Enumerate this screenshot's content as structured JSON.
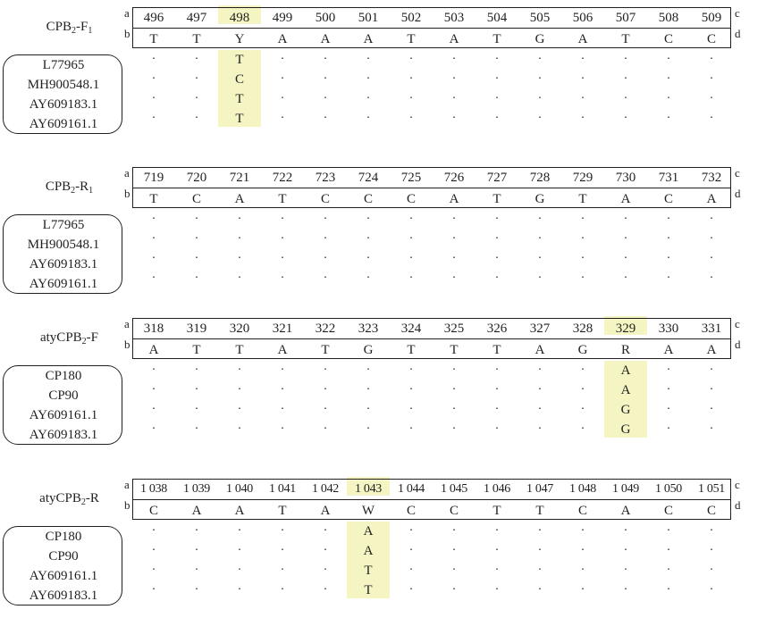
{
  "corners": {
    "a": "a",
    "b": "b",
    "c": "c",
    "d": "d"
  },
  "panels": [
    {
      "label": "CPB",
      "label_sub": "2",
      "label_suffix": "-F",
      "label_suffix_sub": "1",
      "positions": [
        "496",
        "497",
        "498",
        "499",
        "500",
        "501",
        "502",
        "503",
        "504",
        "505",
        "506",
        "507",
        "508",
        "509"
      ],
      "bases": [
        "T",
        "T",
        "Y",
        "A",
        "A",
        "A",
        "T",
        "A",
        "T",
        "G",
        "A",
        "T",
        "C",
        "C"
      ],
      "highlight_index": 2,
      "accessions": [
        "L77965",
        "MH900548.1",
        "AY609183.1",
        "AY609161.1"
      ],
      "variants": [
        "T",
        "C",
        "T",
        "T"
      ],
      "dot": "·"
    },
    {
      "label": "CPB",
      "label_sub": "2",
      "label_suffix": "-R",
      "label_suffix_sub": "1",
      "positions": [
        "719",
        "720",
        "721",
        "722",
        "723",
        "724",
        "725",
        "726",
        "727",
        "728",
        "729",
        "730",
        "731",
        "732"
      ],
      "bases": [
        "T",
        "C",
        "A",
        "T",
        "C",
        "C",
        "C",
        "A",
        "T",
        "G",
        "T",
        "A",
        "C",
        "A"
      ],
      "highlight_index": null,
      "accessions": [
        "L77965",
        "MH900548.1",
        "AY609183.1",
        "AY609161.1"
      ],
      "variants": [],
      "dot": "·"
    },
    {
      "label": "atyCPB",
      "label_sub": "2",
      "label_suffix": "-F",
      "label_suffix_sub": "",
      "positions": [
        "318",
        "319",
        "320",
        "321",
        "322",
        "323",
        "324",
        "325",
        "326",
        "327",
        "328",
        "329",
        "330",
        "331"
      ],
      "bases": [
        "A",
        "T",
        "T",
        "A",
        "T",
        "G",
        "T",
        "T",
        "T",
        "A",
        "G",
        "R",
        "A",
        "A"
      ],
      "highlight_index": 11,
      "accessions": [
        "CP180",
        "CP90",
        "AY609161.1",
        "AY609183.1"
      ],
      "variants": [
        "A",
        "A",
        "G",
        "G"
      ],
      "dot": "·"
    },
    {
      "label": "atyCPB",
      "label_sub": "2",
      "label_suffix": "-R",
      "label_suffix_sub": "",
      "positions": [
        "1 038",
        "1 039",
        "1 040",
        "1 041",
        "1 042",
        "1 043",
        "1 044",
        "1 045",
        "1 046",
        "1 047",
        "1 048",
        "1 049",
        "1 050",
        "1 051"
      ],
      "bases": [
        "C",
        "A",
        "A",
        "T",
        "A",
        "W",
        "C",
        "C",
        "T",
        "T",
        "C",
        "A",
        "C",
        "C"
      ],
      "highlight_index": 5,
      "accessions": [
        "CP180",
        "CP90",
        "AY609161.1",
        "AY609183.1"
      ],
      "variants": [
        "A",
        "A",
        "T",
        "T"
      ],
      "dot": "·"
    }
  ],
  "colors": {
    "highlight": "#f5f5c3",
    "ink": "#231f20"
  }
}
